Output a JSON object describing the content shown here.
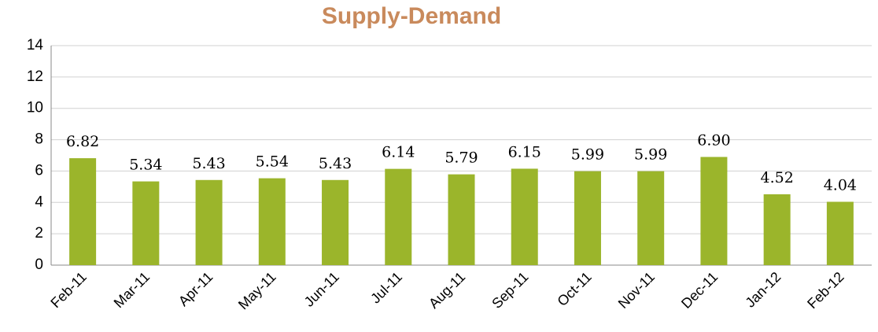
{
  "chart_data": {
    "type": "bar",
    "title": "Supply-Demand",
    "categories": [
      "Feb-11",
      "Mar-11",
      "Apr-11",
      "May-11",
      "Jun-11",
      "Jul-11",
      "Aug-11",
      "Sep-11",
      "Oct-11",
      "Nov-11",
      "Dec-11",
      "Jan-12",
      "Feb-12"
    ],
    "values": [
      6.82,
      5.34,
      5.43,
      5.54,
      5.43,
      6.14,
      5.79,
      6.15,
      5.99,
      5.99,
      6.9,
      4.52,
      4.04
    ],
    "value_labels": [
      "6.82",
      "5.34",
      "5.43",
      "5.54",
      "5.43",
      "6.14",
      "5.79",
      "6.15",
      "5.99",
      "5.99",
      "6.90",
      "4.52",
      "4.04"
    ],
    "color": "#9bb52b",
    "ylim": [
      0,
      14
    ],
    "yticks": [
      0,
      2,
      4,
      6,
      8,
      10,
      12,
      14
    ],
    "grid": true
  }
}
